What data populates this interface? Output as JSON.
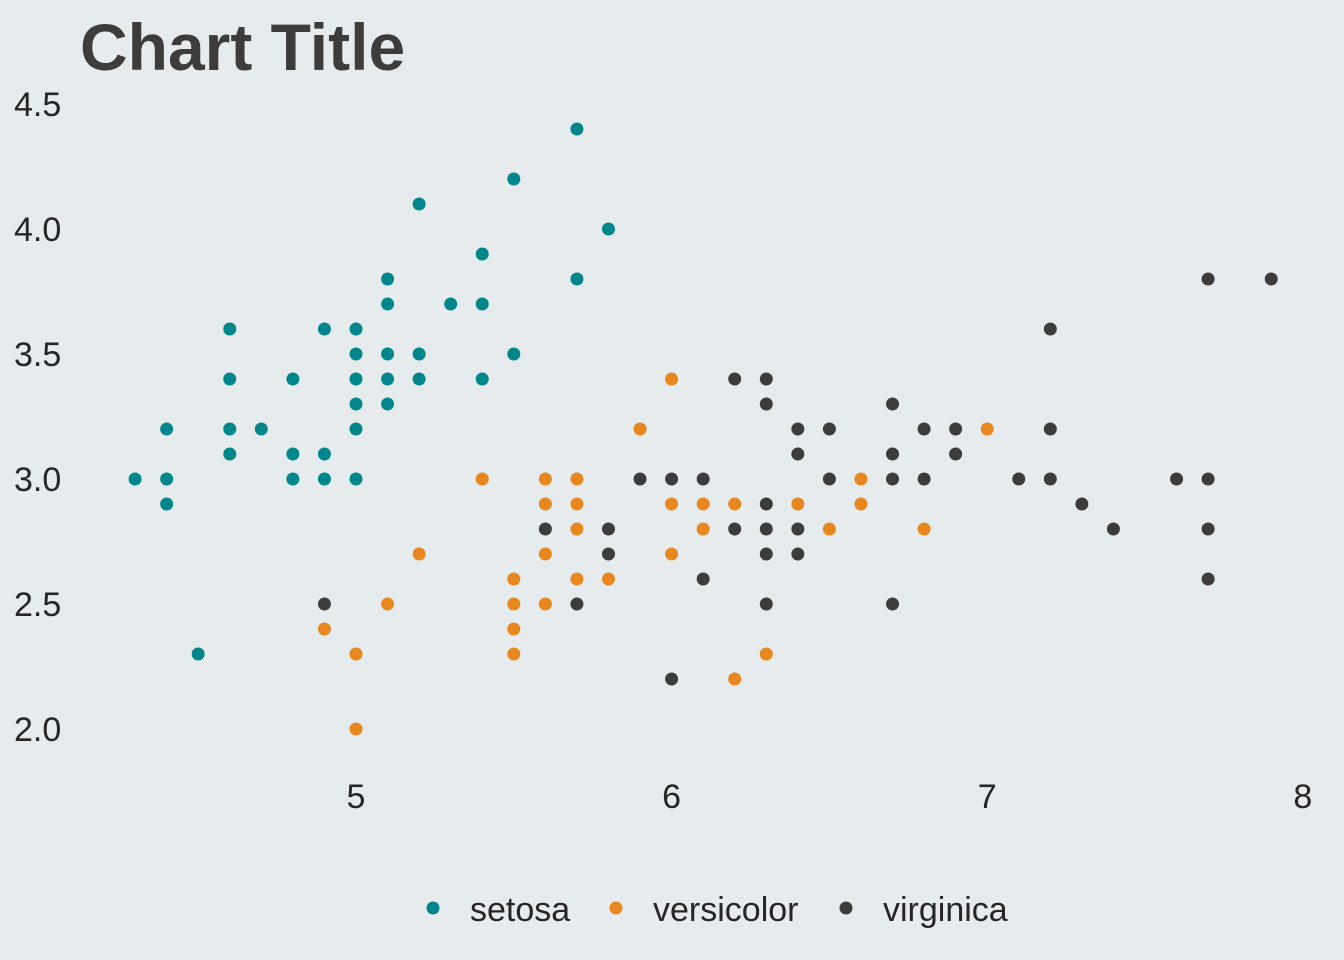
{
  "chart_data": {
    "type": "scatter",
    "title": "Chart Title",
    "xlabel": "",
    "ylabel": "",
    "xlim": [
      4.2,
      8.0
    ],
    "ylim": [
      1.9,
      4.5
    ],
    "x_ticks": [
      "5",
      "6",
      "7",
      "8"
    ],
    "y_ticks": [
      "2.0",
      "2.5",
      "3.0",
      "3.5",
      "4.0",
      "4.5"
    ],
    "grid": false,
    "legend_position": "bottom",
    "colors": {
      "setosa": "#00868b",
      "versicolor": "#e8871e",
      "virginica": "#3c3c3c"
    },
    "series": [
      {
        "name": "setosa",
        "points": [
          [
            4.3,
            3.0
          ],
          [
            4.4,
            3.2
          ],
          [
            4.4,
            3.0
          ],
          [
            4.4,
            2.9
          ],
          [
            4.5,
            2.3
          ],
          [
            4.6,
            3.6
          ],
          [
            4.6,
            3.4
          ],
          [
            4.6,
            3.2
          ],
          [
            4.6,
            3.1
          ],
          [
            4.7,
            3.2
          ],
          [
            4.8,
            3.4
          ],
          [
            4.8,
            3.1
          ],
          [
            4.8,
            3.0
          ],
          [
            4.9,
            3.6
          ],
          [
            4.9,
            3.1
          ],
          [
            4.9,
            3.0
          ],
          [
            5.0,
            3.6
          ],
          [
            5.0,
            3.5
          ],
          [
            5.0,
            3.4
          ],
          [
            5.0,
            3.3
          ],
          [
            5.0,
            3.2
          ],
          [
            5.0,
            3.0
          ],
          [
            5.1,
            3.8
          ],
          [
            5.1,
            3.7
          ],
          [
            5.1,
            3.5
          ],
          [
            5.1,
            3.4
          ],
          [
            5.1,
            3.3
          ],
          [
            5.2,
            4.1
          ],
          [
            5.2,
            3.5
          ],
          [
            5.2,
            3.4
          ],
          [
            5.3,
            3.7
          ],
          [
            5.4,
            3.9
          ],
          [
            5.4,
            3.7
          ],
          [
            5.4,
            3.4
          ],
          [
            5.5,
            4.2
          ],
          [
            5.5,
            3.5
          ],
          [
            5.7,
            4.4
          ],
          [
            5.7,
            3.8
          ],
          [
            5.8,
            4.0
          ]
        ]
      },
      {
        "name": "versicolor",
        "points": [
          [
            4.9,
            2.4
          ],
          [
            5.0,
            2.3
          ],
          [
            5.0,
            2.0
          ],
          [
            5.1,
            2.5
          ],
          [
            5.2,
            2.7
          ],
          [
            5.4,
            3.0
          ],
          [
            5.5,
            2.6
          ],
          [
            5.5,
            2.5
          ],
          [
            5.5,
            2.4
          ],
          [
            5.5,
            2.3
          ],
          [
            5.6,
            3.0
          ],
          [
            5.6,
            2.9
          ],
          [
            5.6,
            2.7
          ],
          [
            5.6,
            2.5
          ],
          [
            5.7,
            3.0
          ],
          [
            5.7,
            2.9
          ],
          [
            5.7,
            2.8
          ],
          [
            5.7,
            2.6
          ],
          [
            5.8,
            2.6
          ],
          [
            5.9,
            3.2
          ],
          [
            6.0,
            3.4
          ],
          [
            6.0,
            2.9
          ],
          [
            6.0,
            2.7
          ],
          [
            6.1,
            2.9
          ],
          [
            6.1,
            2.8
          ],
          [
            6.2,
            2.9
          ],
          [
            6.2,
            2.2
          ],
          [
            6.3,
            2.3
          ],
          [
            6.4,
            2.9
          ],
          [
            6.5,
            2.8
          ],
          [
            6.6,
            3.0
          ],
          [
            6.6,
            2.9
          ],
          [
            6.8,
            2.8
          ],
          [
            7.0,
            3.2
          ]
        ]
      },
      {
        "name": "virginica",
        "points": [
          [
            4.9,
            2.5
          ],
          [
            5.6,
            2.8
          ],
          [
            5.7,
            2.5
          ],
          [
            5.8,
            2.8
          ],
          [
            5.8,
            2.7
          ],
          [
            5.9,
            3.0
          ],
          [
            6.0,
            3.0
          ],
          [
            6.0,
            2.2
          ],
          [
            6.1,
            3.0
          ],
          [
            6.1,
            2.6
          ],
          [
            6.2,
            3.4
          ],
          [
            6.2,
            2.8
          ],
          [
            6.3,
            3.4
          ],
          [
            6.3,
            3.3
          ],
          [
            6.3,
            2.9
          ],
          [
            6.3,
            2.8
          ],
          [
            6.3,
            2.7
          ],
          [
            6.3,
            2.5
          ],
          [
            6.4,
            3.2
          ],
          [
            6.4,
            3.1
          ],
          [
            6.4,
            2.8
          ],
          [
            6.4,
            2.7
          ],
          [
            6.5,
            3.2
          ],
          [
            6.5,
            3.0
          ],
          [
            6.7,
            3.3
          ],
          [
            6.7,
            3.1
          ],
          [
            6.7,
            3.0
          ],
          [
            6.7,
            2.5
          ],
          [
            6.8,
            3.2
          ],
          [
            6.8,
            3.0
          ],
          [
            6.9,
            3.2
          ],
          [
            6.9,
            3.1
          ],
          [
            7.1,
            3.0
          ],
          [
            7.2,
            3.6
          ],
          [
            7.2,
            3.2
          ],
          [
            7.2,
            3.0
          ],
          [
            7.3,
            2.9
          ],
          [
            7.4,
            2.8
          ],
          [
            7.6,
            3.0
          ],
          [
            7.7,
            3.8
          ],
          [
            7.7,
            3.0
          ],
          [
            7.7,
            2.8
          ],
          [
            7.7,
            2.6
          ],
          [
            7.9,
            3.8
          ]
        ]
      }
    ]
  }
}
